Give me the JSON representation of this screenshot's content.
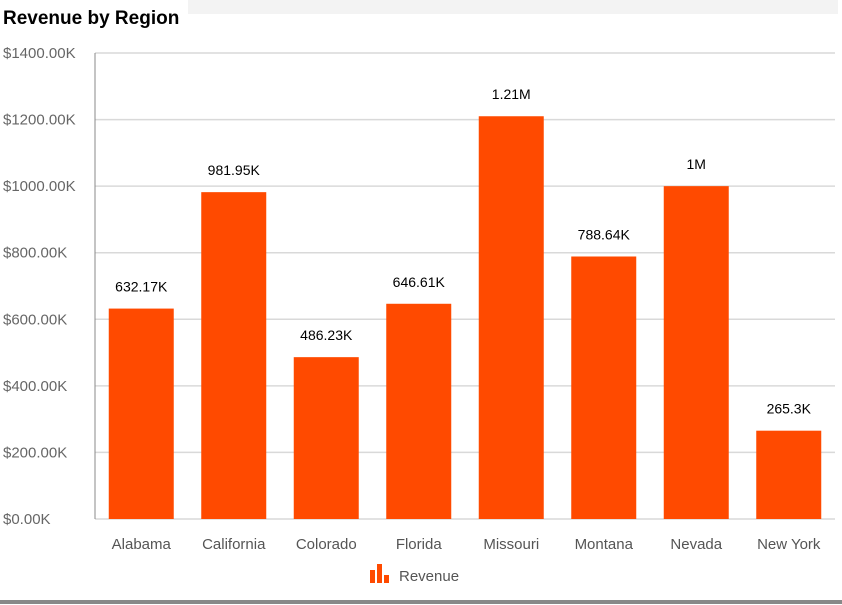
{
  "chart_data": {
    "type": "bar",
    "title": "Revenue by Region",
    "categories": [
      "Alabama",
      "California",
      "Colorado",
      "Florida",
      "Missouri",
      "Montana",
      "Nevada",
      "New York"
    ],
    "series": [
      {
        "name": "Revenue",
        "values": [
          632170,
          981950,
          486230,
          646610,
          1210000,
          788640,
          1000000,
          265300
        ],
        "data_labels": [
          "632.17K",
          "981.95K",
          "486.23K",
          "646.61K",
          "1.21M",
          "788.64K",
          "1M",
          "265.3K"
        ]
      }
    ],
    "yticks": [
      "$0.00K",
      "$200.00K",
      "$400.00K",
      "$600.00K",
      "$800.00K",
      "$1000.00K",
      "$1200.00K",
      "$1400.00K"
    ],
    "ylim": [
      0,
      1400000
    ],
    "grid": true,
    "legend": "bottom",
    "color": "#ff4a00"
  }
}
